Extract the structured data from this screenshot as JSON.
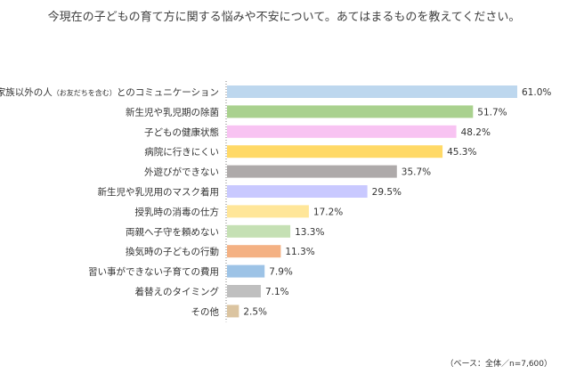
{
  "chart_data": {
    "type": "bar",
    "orientation": "horizontal",
    "title": "今現在の子どもの育て方に関する悩みや不安について。あてはまるものを教えてください。",
    "categories": [
      "家族以外の人（お友だちを含む）とのコミュニケーション",
      "新生児や乳児期の除菌",
      "子どもの健康状態",
      "病院に行きにくい",
      "外遊びができない",
      "新生児や乳児用のマスク着用",
      "授乳時の消毒の仕方",
      "両親へ子守を頼めない",
      "換気時の子どもの行動",
      "習い事ができない子育ての費用",
      "着替えのタイミング",
      "その他"
    ],
    "category_label_parts": [
      {
        "pre": "家族以外の人",
        "sub": "（お友だちを含む）",
        "post": "とのコミュニケーション"
      }
    ],
    "values": [
      61.0,
      51.7,
      48.2,
      45.3,
      35.7,
      29.5,
      17.2,
      13.3,
      11.3,
      7.9,
      7.1,
      2.5
    ],
    "value_labels": [
      "61.0%",
      "51.7%",
      "48.2%",
      "45.3%",
      "35.7%",
      "29.5%",
      "17.2%",
      "13.3%",
      "11.3%",
      "7.9%",
      "7.1%",
      "2.5%"
    ],
    "colors": [
      "#bdd7ee",
      "#a9d18e",
      "#f8c3f2",
      "#ffd966",
      "#aeaaaa",
      "#c9c9ff",
      "#ffe699",
      "#c5e0b4",
      "#f4b183",
      "#9dc3e6",
      "#bfbfbf",
      "#dbc4a0"
    ],
    "xlim": [
      0,
      61.0
    ],
    "grid": false,
    "legend": "none",
    "note": "（ベース：全体／n=7,600）"
  }
}
